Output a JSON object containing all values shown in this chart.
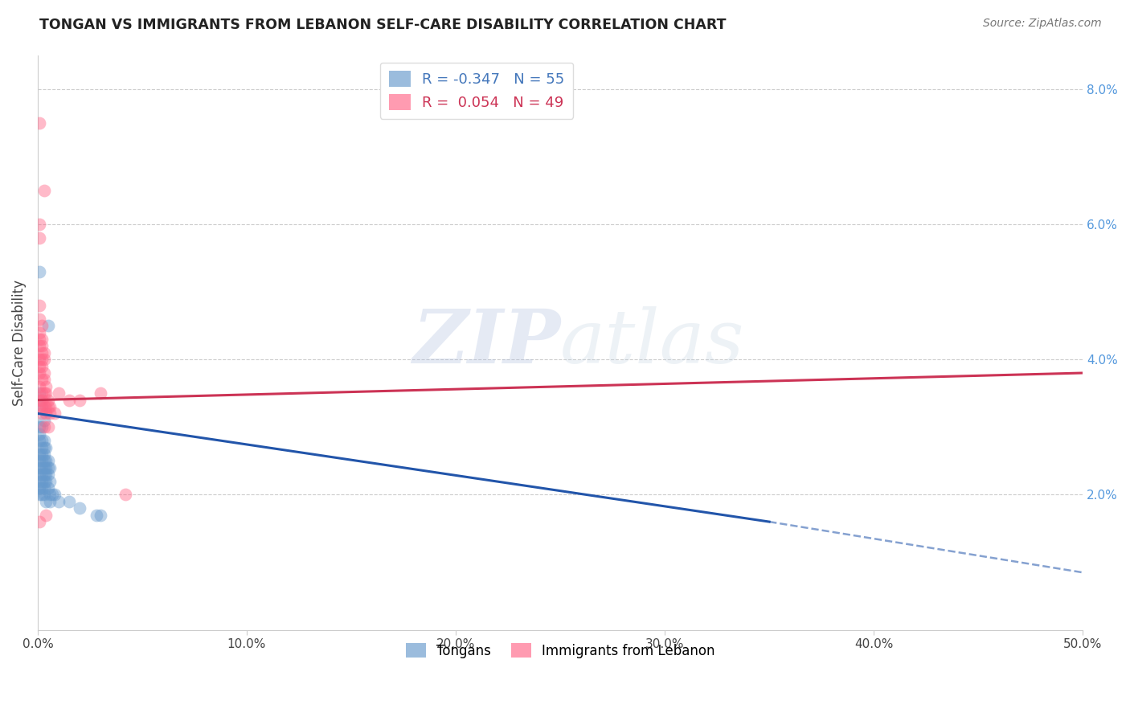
{
  "title": "TONGAN VS IMMIGRANTS FROM LEBANON SELF-CARE DISABILITY CORRELATION CHART",
  "source": "Source: ZipAtlas.com",
  "ylabel": "Self-Care Disability",
  "xlim": [
    0.0,
    0.5
  ],
  "ylim": [
    0.0,
    0.085
  ],
  "xticks": [
    0.0,
    0.1,
    0.2,
    0.3,
    0.4,
    0.5
  ],
  "ytick_vals": [
    0.02,
    0.04,
    0.06,
    0.08
  ],
  "ytick_labels_right": [
    "2.0%",
    "4.0%",
    "6.0%",
    "8.0%"
  ],
  "xtick_labels": [
    "0.0%",
    "10.0%",
    "20.0%",
    "30.0%",
    "40.0%",
    "50.0%"
  ],
  "blue_color": "#6699CC",
  "pink_color": "#FF6688",
  "blue_line_color": "#2255AA",
  "pink_line_color": "#CC3355",
  "blue_R": -0.347,
  "blue_N": 55,
  "pink_R": 0.054,
  "pink_N": 49,
  "legend_label_blue": "Tongans",
  "legend_label_pink": "Immigrants from Lebanon",
  "watermark": "ZIPatlas",
  "blue_line_x0": 0.0,
  "blue_line_y0": 0.032,
  "blue_line_x1": 0.35,
  "blue_line_y1": 0.016,
  "blue_line_dash_x1": 0.5,
  "blue_line_dash_y1": 0.0085,
  "pink_line_x0": 0.0,
  "pink_line_y0": 0.034,
  "pink_line_x1": 0.5,
  "pink_line_y1": 0.038,
  "blue_points": [
    [
      0.001,
      0.053
    ],
    [
      0.005,
      0.045
    ],
    [
      0.001,
      0.035
    ],
    [
      0.002,
      0.033
    ],
    [
      0.003,
      0.031
    ],
    [
      0.001,
      0.03
    ],
    [
      0.002,
      0.03
    ],
    [
      0.001,
      0.029
    ],
    [
      0.002,
      0.028
    ],
    [
      0.003,
      0.028
    ],
    [
      0.001,
      0.028
    ],
    [
      0.002,
      0.027
    ],
    [
      0.004,
      0.027
    ],
    [
      0.003,
      0.027
    ],
    [
      0.001,
      0.026
    ],
    [
      0.002,
      0.026
    ],
    [
      0.003,
      0.026
    ],
    [
      0.004,
      0.025
    ],
    [
      0.001,
      0.025
    ],
    [
      0.002,
      0.025
    ],
    [
      0.003,
      0.025
    ],
    [
      0.005,
      0.025
    ],
    [
      0.004,
      0.024
    ],
    [
      0.002,
      0.024
    ],
    [
      0.003,
      0.024
    ],
    [
      0.001,
      0.024
    ],
    [
      0.005,
      0.024
    ],
    [
      0.006,
      0.024
    ],
    [
      0.001,
      0.023
    ],
    [
      0.002,
      0.023
    ],
    [
      0.003,
      0.023
    ],
    [
      0.004,
      0.023
    ],
    [
      0.005,
      0.023
    ],
    [
      0.001,
      0.022
    ],
    [
      0.002,
      0.022
    ],
    [
      0.003,
      0.022
    ],
    [
      0.004,
      0.022
    ],
    [
      0.006,
      0.022
    ],
    [
      0.001,
      0.021
    ],
    [
      0.002,
      0.021
    ],
    [
      0.003,
      0.021
    ],
    [
      0.005,
      0.021
    ],
    [
      0.001,
      0.02
    ],
    [
      0.002,
      0.02
    ],
    [
      0.003,
      0.02
    ],
    [
      0.006,
      0.02
    ],
    [
      0.007,
      0.02
    ],
    [
      0.008,
      0.02
    ],
    [
      0.004,
      0.019
    ],
    [
      0.006,
      0.019
    ],
    [
      0.01,
      0.019
    ],
    [
      0.015,
      0.019
    ],
    [
      0.02,
      0.018
    ],
    [
      0.03,
      0.017
    ],
    [
      0.028,
      0.017
    ]
  ],
  "pink_points": [
    [
      0.001,
      0.075
    ],
    [
      0.003,
      0.065
    ],
    [
      0.001,
      0.06
    ],
    [
      0.001,
      0.058
    ],
    [
      0.001,
      0.048
    ],
    [
      0.001,
      0.046
    ],
    [
      0.002,
      0.045
    ],
    [
      0.001,
      0.044
    ],
    [
      0.001,
      0.043
    ],
    [
      0.002,
      0.043
    ],
    [
      0.002,
      0.042
    ],
    [
      0.001,
      0.042
    ],
    [
      0.002,
      0.041
    ],
    [
      0.003,
      0.041
    ],
    [
      0.001,
      0.04
    ],
    [
      0.002,
      0.04
    ],
    [
      0.003,
      0.04
    ],
    [
      0.001,
      0.039
    ],
    [
      0.002,
      0.039
    ],
    [
      0.003,
      0.038
    ],
    [
      0.001,
      0.038
    ],
    [
      0.002,
      0.037
    ],
    [
      0.003,
      0.037
    ],
    [
      0.004,
      0.036
    ],
    [
      0.001,
      0.036
    ],
    [
      0.002,
      0.035
    ],
    [
      0.003,
      0.035
    ],
    [
      0.004,
      0.035
    ],
    [
      0.005,
      0.034
    ],
    [
      0.001,
      0.034
    ],
    [
      0.002,
      0.034
    ],
    [
      0.003,
      0.033
    ],
    [
      0.004,
      0.033
    ],
    [
      0.005,
      0.033
    ],
    [
      0.006,
      0.033
    ],
    [
      0.001,
      0.033
    ],
    [
      0.002,
      0.032
    ],
    [
      0.004,
      0.032
    ],
    [
      0.006,
      0.032
    ],
    [
      0.008,
      0.032
    ],
    [
      0.003,
      0.03
    ],
    [
      0.005,
      0.03
    ],
    [
      0.01,
      0.035
    ],
    [
      0.015,
      0.034
    ],
    [
      0.02,
      0.034
    ],
    [
      0.03,
      0.035
    ],
    [
      0.042,
      0.02
    ],
    [
      0.001,
      0.016
    ],
    [
      0.004,
      0.017
    ]
  ]
}
